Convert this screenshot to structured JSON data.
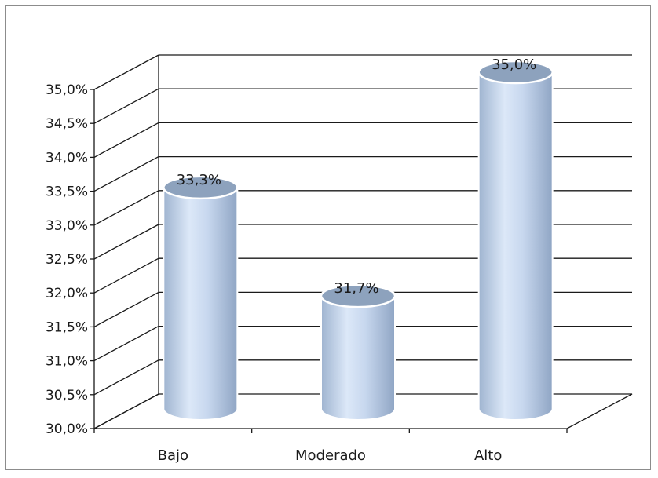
{
  "chart_data": {
    "type": "bar",
    "style": "3d-cylinder",
    "categories": [
      "Bajo",
      "Moderado",
      "Alto"
    ],
    "values": [
      33.3,
      31.7,
      35.0
    ],
    "data_labels": [
      "33,3%",
      "31,7%",
      "35,0%"
    ],
    "y_tick_labels": [
      "30,0%",
      "30,5%",
      "31,0%",
      "31,5%",
      "32,0%",
      "32,5%",
      "33,0%",
      "33,5%",
      "34,0%",
      "34,5%",
      "35,0%"
    ],
    "y_ticks": [
      30.0,
      30.5,
      31.0,
      31.5,
      32.0,
      32.5,
      33.0,
      33.5,
      34.0,
      34.5,
      35.0
    ],
    "ylim": [
      30.0,
      35.0
    ],
    "grid": true,
    "legend": "none",
    "colors": {
      "bar_top": "#8da2bd",
      "bar_light": "#dce8f8",
      "bar_dark": "#8fa5c4",
      "grid": "#1a1a1a",
      "frame": "#8c8c8c"
    }
  }
}
